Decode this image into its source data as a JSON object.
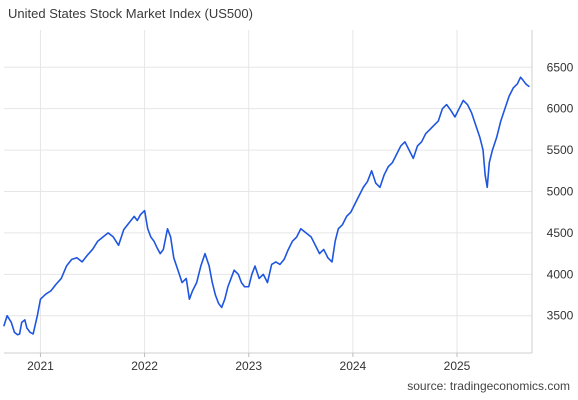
{
  "chart_data": {
    "type": "line",
    "title": "United States Stock Market Index (US500)",
    "source": "source: tradingeconomics.com",
    "xlabel": "",
    "ylabel": "",
    "xlim": [
      2020.65,
      2025.72
    ],
    "ylim": [
      3050,
      6950
    ],
    "x_ticks": [
      2021,
      2022,
      2023,
      2024,
      2025
    ],
    "x_tick_labels": [
      "2021",
      "2022",
      "2023",
      "2024",
      "2025"
    ],
    "y_ticks": [
      3500,
      4000,
      4500,
      5000,
      5500,
      6000,
      6500
    ],
    "y_tick_labels": [
      "3500",
      "4000",
      "4500",
      "5000",
      "5500",
      "6000",
      "6500"
    ],
    "grid": true,
    "legend": "none",
    "series": [
      {
        "color": "#1f56e0",
        "x": [
          2020.65,
          2020.68,
          2020.72,
          2020.75,
          2020.78,
          2020.8,
          2020.82,
          2020.85,
          2020.87,
          2020.9,
          2020.93,
          2020.97,
          2021.0,
          2021.05,
          2021.1,
          2021.15,
          2021.2,
          2021.25,
          2021.3,
          2021.35,
          2021.4,
          2021.45,
          2021.5,
          2021.55,
          2021.6,
          2021.65,
          2021.7,
          2021.75,
          2021.8,
          2021.85,
          2021.9,
          2021.93,
          2021.96,
          2022.0,
          2022.03,
          2022.06,
          2022.09,
          2022.12,
          2022.15,
          2022.18,
          2022.22,
          2022.25,
          2022.28,
          2022.32,
          2022.36,
          2022.4,
          2022.43,
          2022.46,
          2022.5,
          2022.54,
          2022.58,
          2022.62,
          2022.65,
          2022.68,
          2022.71,
          2022.74,
          2022.77,
          2022.8,
          2022.83,
          2022.86,
          2022.9,
          2022.93,
          2022.96,
          2023.0,
          2023.03,
          2023.06,
          2023.1,
          2023.14,
          2023.18,
          2023.22,
          2023.26,
          2023.3,
          2023.34,
          2023.38,
          2023.42,
          2023.46,
          2023.5,
          2023.55,
          2023.6,
          2023.64,
          2023.68,
          2023.72,
          2023.76,
          2023.8,
          2023.83,
          2023.86,
          2023.9,
          2023.94,
          2023.98,
          2024.02,
          2024.06,
          2024.1,
          2024.14,
          2024.18,
          2024.22,
          2024.26,
          2024.3,
          2024.34,
          2024.38,
          2024.42,
          2024.46,
          2024.5,
          2024.54,
          2024.58,
          2024.62,
          2024.66,
          2024.7,
          2024.74,
          2024.78,
          2024.82,
          2024.86,
          2024.9,
          2024.94,
          2024.98,
          2025.02,
          2025.06,
          2025.1,
          2025.14,
          2025.18,
          2025.22,
          2025.25,
          2025.27,
          2025.29,
          2025.31,
          2025.34,
          2025.38,
          2025.42,
          2025.46,
          2025.5,
          2025.54,
          2025.58,
          2025.61,
          2025.63,
          2025.66,
          2025.69
        ],
        "y": [
          3380,
          3500,
          3420,
          3300,
          3270,
          3280,
          3420,
          3450,
          3350,
          3300,
          3280,
          3500,
          3700,
          3760,
          3800,
          3880,
          3950,
          4100,
          4180,
          4200,
          4150,
          4230,
          4300,
          4400,
          4450,
          4500,
          4450,
          4350,
          4540,
          4620,
          4700,
          4650,
          4720,
          4770,
          4550,
          4450,
          4400,
          4320,
          4250,
          4300,
          4550,
          4450,
          4200,
          4050,
          3900,
          3950,
          3700,
          3800,
          3900,
          4100,
          4250,
          4100,
          3900,
          3750,
          3650,
          3600,
          3700,
          3850,
          3950,
          4050,
          4000,
          3900,
          3850,
          3850,
          4000,
          4100,
          3950,
          4000,
          3900,
          4120,
          4150,
          4120,
          4180,
          4300,
          4400,
          4450,
          4550,
          4500,
          4450,
          4350,
          4250,
          4300,
          4200,
          4150,
          4400,
          4550,
          4600,
          4700,
          4750,
          4850,
          4950,
          5050,
          5120,
          5250,
          5100,
          5050,
          5200,
          5300,
          5350,
          5450,
          5550,
          5600,
          5500,
          5400,
          5550,
          5600,
          5700,
          5750,
          5800,
          5850,
          6000,
          6050,
          5980,
          5900,
          6000,
          6100,
          6050,
          5950,
          5800,
          5650,
          5500,
          5200,
          5050,
          5350,
          5500,
          5650,
          5850,
          6000,
          6150,
          6250,
          6300,
          6380,
          6350,
          6300,
          6270
        ]
      }
    ]
  }
}
